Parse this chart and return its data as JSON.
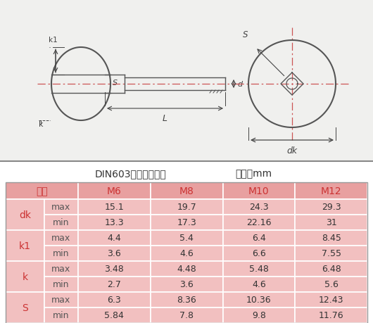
{
  "title_line1": "DIN603大头方颈螺栓",
  "title_line2": "单位：mm",
  "bg_color": "#f8f8f8",
  "table_header_bg": "#e8a0a0",
  "table_row_bg": "#f2c0c0",
  "header_text_color": "#cc3333",
  "data_text_color": "#333333",
  "maxmin_text_color": "#555555",
  "diagram_line_color": "#555555",
  "centerline_color": "#cc5555",
  "rows": [
    [
      "dk",
      "max",
      "15.1",
      "19.7",
      "24.3",
      "29.3"
    ],
    [
      "dk",
      "min",
      "13.3",
      "17.3",
      "22.16",
      "31"
    ],
    [
      "k1",
      "max",
      "4.4",
      "5.4",
      "6.4",
      "8.45"
    ],
    [
      "k1",
      "min",
      "3.6",
      "4.6",
      "6.6",
      "7.55"
    ],
    [
      "k",
      "max",
      "3.48",
      "4.48",
      "5.48",
      "6.48"
    ],
    [
      "k",
      "min",
      "2.7",
      "3.6",
      "4.6",
      "5.6"
    ],
    [
      "S",
      "max",
      "6.3",
      "8.36",
      "10.36",
      "12.43"
    ],
    [
      "S",
      "min",
      "5.84",
      "7.8",
      "9.8",
      "11.76"
    ]
  ]
}
